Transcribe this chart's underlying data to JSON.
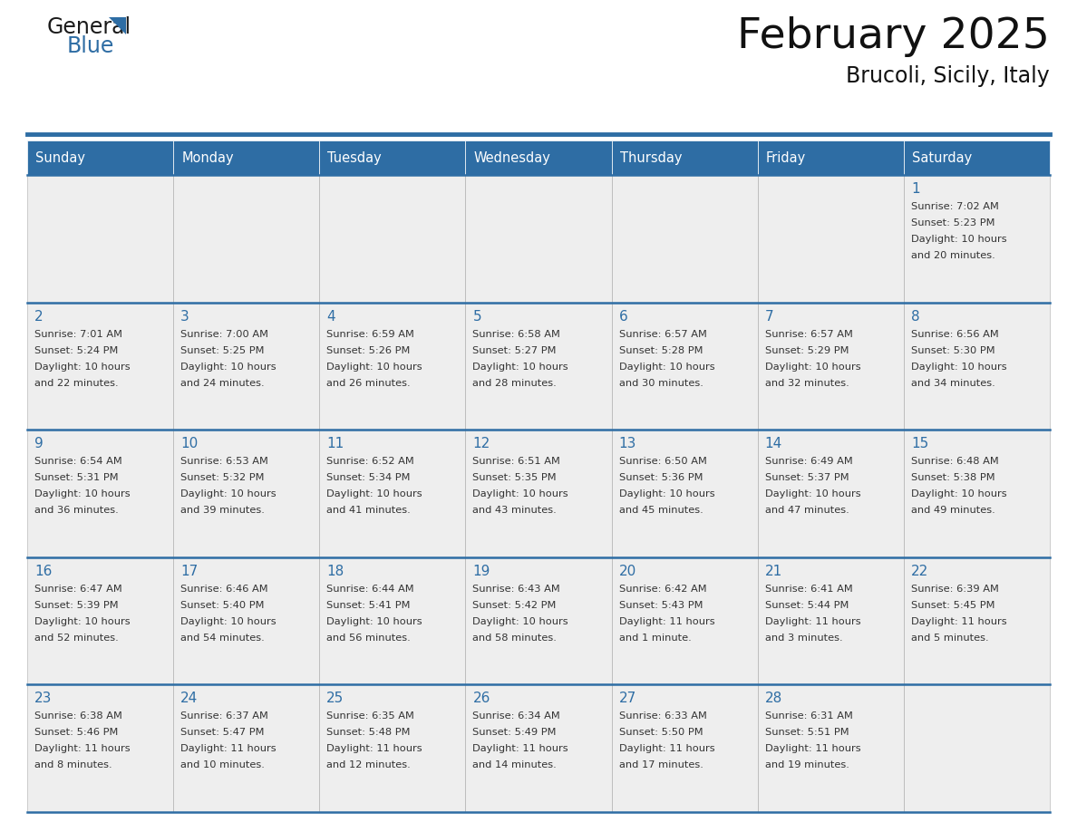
{
  "title": "February 2025",
  "subtitle": "Brucoli, Sicily, Italy",
  "header_bg": "#2E6DA4",
  "header_text_color": "#FFFFFF",
  "cell_bg_light": "#EEEEEE",
  "cell_bg_white": "#FFFFFF",
  "cell_border_color": "#BBBBBB",
  "row_divider_color": "#2E6DA4",
  "day_number_color": "#2E6DA4",
  "info_text_color": "#333333",
  "days_of_week": [
    "Sunday",
    "Monday",
    "Tuesday",
    "Wednesday",
    "Thursday",
    "Friday",
    "Saturday"
  ],
  "calendar_data": [
    [
      null,
      null,
      null,
      null,
      null,
      null,
      {
        "day": "1",
        "sunrise": "7:02 AM",
        "sunset": "5:23 PM",
        "daylight": "10 hours",
        "daylight2": "and 20 minutes."
      }
    ],
    [
      {
        "day": "2",
        "sunrise": "7:01 AM",
        "sunset": "5:24 PM",
        "daylight": "10 hours",
        "daylight2": "and 22 minutes."
      },
      {
        "day": "3",
        "sunrise": "7:00 AM",
        "sunset": "5:25 PM",
        "daylight": "10 hours",
        "daylight2": "and 24 minutes."
      },
      {
        "day": "4",
        "sunrise": "6:59 AM",
        "sunset": "5:26 PM",
        "daylight": "10 hours",
        "daylight2": "and 26 minutes."
      },
      {
        "day": "5",
        "sunrise": "6:58 AM",
        "sunset": "5:27 PM",
        "daylight": "10 hours",
        "daylight2": "and 28 minutes."
      },
      {
        "day": "6",
        "sunrise": "6:57 AM",
        "sunset": "5:28 PM",
        "daylight": "10 hours",
        "daylight2": "and 30 minutes."
      },
      {
        "day": "7",
        "sunrise": "6:57 AM",
        "sunset": "5:29 PM",
        "daylight": "10 hours",
        "daylight2": "and 32 minutes."
      },
      {
        "day": "8",
        "sunrise": "6:56 AM",
        "sunset": "5:30 PM",
        "daylight": "10 hours",
        "daylight2": "and 34 minutes."
      }
    ],
    [
      {
        "day": "9",
        "sunrise": "6:54 AM",
        "sunset": "5:31 PM",
        "daylight": "10 hours",
        "daylight2": "and 36 minutes."
      },
      {
        "day": "10",
        "sunrise": "6:53 AM",
        "sunset": "5:32 PM",
        "daylight": "10 hours",
        "daylight2": "and 39 minutes."
      },
      {
        "day": "11",
        "sunrise": "6:52 AM",
        "sunset": "5:34 PM",
        "daylight": "10 hours",
        "daylight2": "and 41 minutes."
      },
      {
        "day": "12",
        "sunrise": "6:51 AM",
        "sunset": "5:35 PM",
        "daylight": "10 hours",
        "daylight2": "and 43 minutes."
      },
      {
        "day": "13",
        "sunrise": "6:50 AM",
        "sunset": "5:36 PM",
        "daylight": "10 hours",
        "daylight2": "and 45 minutes."
      },
      {
        "day": "14",
        "sunrise": "6:49 AM",
        "sunset": "5:37 PM",
        "daylight": "10 hours",
        "daylight2": "and 47 minutes."
      },
      {
        "day": "15",
        "sunrise": "6:48 AM",
        "sunset": "5:38 PM",
        "daylight": "10 hours",
        "daylight2": "and 49 minutes."
      }
    ],
    [
      {
        "day": "16",
        "sunrise": "6:47 AM",
        "sunset": "5:39 PM",
        "daylight": "10 hours",
        "daylight2": "and 52 minutes."
      },
      {
        "day": "17",
        "sunrise": "6:46 AM",
        "sunset": "5:40 PM",
        "daylight": "10 hours",
        "daylight2": "and 54 minutes."
      },
      {
        "day": "18",
        "sunrise": "6:44 AM",
        "sunset": "5:41 PM",
        "daylight": "10 hours",
        "daylight2": "and 56 minutes."
      },
      {
        "day": "19",
        "sunrise": "6:43 AM",
        "sunset": "5:42 PM",
        "daylight": "10 hours",
        "daylight2": "and 58 minutes."
      },
      {
        "day": "20",
        "sunrise": "6:42 AM",
        "sunset": "5:43 PM",
        "daylight": "11 hours",
        "daylight2": "and 1 minute."
      },
      {
        "day": "21",
        "sunrise": "6:41 AM",
        "sunset": "5:44 PM",
        "daylight": "11 hours",
        "daylight2": "and 3 minutes."
      },
      {
        "day": "22",
        "sunrise": "6:39 AM",
        "sunset": "5:45 PM",
        "daylight": "11 hours",
        "daylight2": "and 5 minutes."
      }
    ],
    [
      {
        "day": "23",
        "sunrise": "6:38 AM",
        "sunset": "5:46 PM",
        "daylight": "11 hours",
        "daylight2": "and 8 minutes."
      },
      {
        "day": "24",
        "sunrise": "6:37 AM",
        "sunset": "5:47 PM",
        "daylight": "11 hours",
        "daylight2": "and 10 minutes."
      },
      {
        "day": "25",
        "sunrise": "6:35 AM",
        "sunset": "5:48 PM",
        "daylight": "11 hours",
        "daylight2": "and 12 minutes."
      },
      {
        "day": "26",
        "sunrise": "6:34 AM",
        "sunset": "5:49 PM",
        "daylight": "11 hours",
        "daylight2": "and 14 minutes."
      },
      {
        "day": "27",
        "sunrise": "6:33 AM",
        "sunset": "5:50 PM",
        "daylight": "11 hours",
        "daylight2": "and 17 minutes."
      },
      {
        "day": "28",
        "sunrise": "6:31 AM",
        "sunset": "5:51 PM",
        "daylight": "11 hours",
        "daylight2": "and 19 minutes."
      },
      null
    ]
  ],
  "fig_width": 11.88,
  "fig_height": 9.18,
  "dpi": 100
}
